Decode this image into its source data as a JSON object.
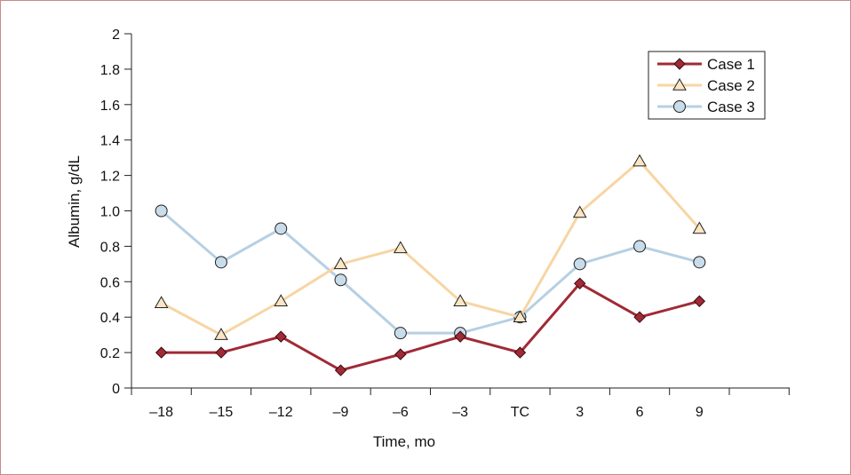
{
  "chart_data": {
    "type": "line",
    "title": "",
    "xlabel": "Time, mo",
    "ylabel": "Albumin, g/dL",
    "categories": [
      "–18",
      "–15",
      "–12",
      "–9",
      "–6",
      "–3",
      "TC",
      "3",
      "6",
      "9"
    ],
    "yticks": [
      "0",
      "0.2",
      "0.4",
      "0.6",
      "0.8",
      "1.0",
      "1.2",
      "1.4",
      "1.6",
      "1.8",
      "2"
    ],
    "ylim": [
      0,
      2
    ],
    "grid": false,
    "legend_position": "top-right",
    "series": [
      {
        "name": "Case 1",
        "color": "#a02a36",
        "marker": "diamond",
        "values": [
          0.2,
          0.2,
          0.29,
          0.1,
          0.19,
          0.29,
          0.2,
          0.59,
          0.4,
          0.49
        ]
      },
      {
        "name": "Case 2",
        "color": "#f7d5a3",
        "marker": "triangle",
        "values": [
          0.48,
          0.3,
          0.49,
          0.7,
          0.79,
          0.49,
          0.4,
          0.99,
          1.28,
          0.9
        ]
      },
      {
        "name": "Case 3",
        "color": "#b6d0e3",
        "marker": "circle",
        "values": [
          1.0,
          0.71,
          0.9,
          0.61,
          0.31,
          0.31,
          0.4,
          0.7,
          0.8,
          0.71
        ]
      }
    ]
  }
}
